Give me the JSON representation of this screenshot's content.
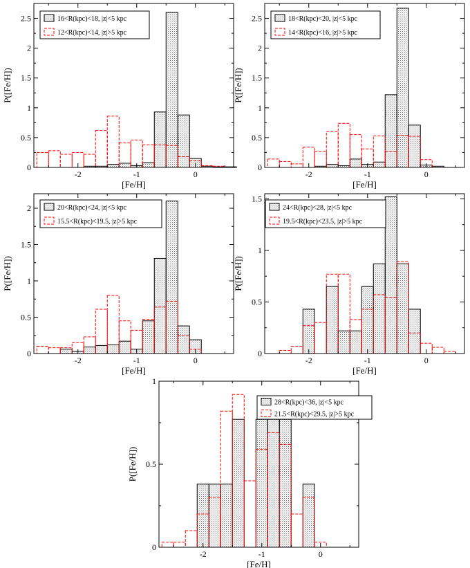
{
  "figure": {
    "colors": {
      "series1": "#000000",
      "series2": "#ff0000",
      "hatch": "#777777"
    }
  },
  "chart_data": [
    {
      "type": "bar",
      "title": "",
      "xlabel": "[Fe/H]",
      "ylabel": "P([Fe/H])",
      "xlim": [
        -2.75,
        0.65
      ],
      "ylim": [
        0,
        2.75
      ],
      "bin_width": 0.2,
      "xticks": [
        -2,
        -1,
        0
      ],
      "xtick_labels": [
        "-2",
        "-1",
        "0"
      ],
      "yticks": [
        0,
        0.5,
        1,
        1.5,
        2,
        2.5
      ],
      "ytick_labels": [
        "0",
        "0.5",
        "1",
        "1.5",
        "2",
        "2.5"
      ],
      "legend": [
        "16<R(kpc)<18, |z|<5 kpc",
        "12<R(kpc)<14, |z|>5 kpc"
      ],
      "legend_position": "top-left",
      "series": [
        {
          "name": "16<R(kpc)<18, |z|<5 kpc",
          "bin_left": [
            -1.9,
            -1.7,
            -1.5,
            -1.3,
            -1.1,
            -0.9,
            -0.7,
            -0.5,
            -0.3,
            -0.1,
            0.1,
            0.3,
            0.5
          ],
          "values": [
            0.02,
            0.02,
            0.05,
            0.07,
            0.03,
            0.08,
            0.93,
            2.6,
            0.88,
            0.15,
            0.02,
            0.01,
            0.01
          ]
        },
        {
          "name": "12<R(kpc)<14, |z|>5 kpc",
          "bin_left": [
            -2.7,
            -2.5,
            -2.3,
            -2.1,
            -1.9,
            -1.7,
            -1.5,
            -1.3,
            -1.1,
            -0.9,
            -0.7,
            -0.5,
            -0.3,
            -0.1,
            0.1,
            0.3
          ],
          "values": [
            0.25,
            0.28,
            0.22,
            0.25,
            0.22,
            0.62,
            0.86,
            0.41,
            0.46,
            0.38,
            0.38,
            0.37,
            0.18,
            0.11,
            0.03,
            0.02
          ]
        }
      ]
    },
    {
      "type": "bar",
      "title": "",
      "xlabel": "[Fe/H]",
      "ylabel": "P([Fe/H])",
      "xlim": [
        -2.75,
        0.65
      ],
      "ylim": [
        0,
        2.75
      ],
      "bin_width": 0.2,
      "xticks": [
        -2,
        -1,
        0
      ],
      "xtick_labels": [
        "-2",
        "-1",
        "0"
      ],
      "yticks": [
        0,
        0.5,
        1,
        1.5,
        2,
        2.5
      ],
      "ytick_labels": [
        "0",
        "0.5",
        "1",
        "1.5",
        "2",
        "2.5"
      ],
      "legend": [
        "18<R(kpc)<20, |z|<5 kpc",
        "14<R(kpc)<16, |z|>5 kpc"
      ],
      "legend_position": "top-left",
      "series": [
        {
          "name": "18<R(kpc)<20, |z|<5 kpc",
          "bin_left": [
            -1.9,
            -1.7,
            -1.5,
            -1.3,
            -1.1,
            -0.9,
            -0.7,
            -0.5,
            -0.3,
            -0.1,
            0.1
          ],
          "values": [
            0.02,
            0.05,
            0.03,
            0.14,
            0.05,
            0.09,
            1.22,
            2.67,
            0.71,
            0.04,
            0.02
          ]
        },
        {
          "name": "14<R(kpc)<16, |z|>5 kpc",
          "bin_left": [
            -2.7,
            -2.5,
            -2.3,
            -2.1,
            -1.9,
            -1.7,
            -1.5,
            -1.3,
            -1.1,
            -0.9,
            -0.7,
            -0.5,
            -0.3,
            -0.1
          ],
          "values": [
            0.14,
            0.1,
            0.06,
            0.34,
            0.27,
            0.6,
            0.74,
            0.55,
            0.31,
            0.53,
            0.27,
            0.54,
            0.52,
            0.13
          ]
        }
      ]
    },
    {
      "type": "bar",
      "title": "",
      "xlabel": "[Fe/H]",
      "ylabel": "P([Fe/H])",
      "xlim": [
        -2.75,
        0.65
      ],
      "ylim": [
        0,
        2.2
      ],
      "bin_width": 0.2,
      "xticks": [
        -2,
        -1,
        0
      ],
      "xtick_labels": [
        "-2",
        "-1",
        "0"
      ],
      "yticks": [
        0,
        0.5,
        1,
        1.5,
        2
      ],
      "ytick_labels": [
        "0",
        "0.5",
        "1",
        "1.5",
        "2"
      ],
      "legend": [
        "20<R(kpc)<24, |z|<5 kpc",
        "15.5<R(kpc)<19.5, |z|>5 kpc"
      ],
      "legend_position": "top-left",
      "series": [
        {
          "name": "20<R(kpc)<24, |z|<5 kpc",
          "bin_left": [
            -2.3,
            -2.1,
            -1.9,
            -1.7,
            -1.5,
            -1.3,
            -1.1,
            -0.9,
            -0.7,
            -0.5,
            -0.3,
            -0.1
          ],
          "values": [
            0.06,
            0.03,
            0.09,
            0.11,
            0.12,
            0.17,
            0.06,
            0.45,
            1.31,
            2.1,
            0.38,
            0.19
          ]
        },
        {
          "name": "15.5<R(kpc)<19.5, |z|>5 kpc",
          "bin_left": [
            -2.7,
            -2.5,
            -2.3,
            -2.1,
            -1.9,
            -1.7,
            -1.5,
            -1.3,
            -1.1,
            -0.9,
            -0.7,
            -0.5,
            -0.3,
            -0.1
          ],
          "values": [
            0.1,
            0.08,
            0.08,
            0.15,
            0.23,
            0.61,
            0.8,
            0.45,
            0.32,
            0.47,
            0.64,
            0.72,
            0.25,
            0.06
          ]
        }
      ]
    },
    {
      "type": "bar",
      "title": "",
      "xlabel": "[Fe/H]",
      "ylabel": "P([Fe/H])",
      "xlim": [
        -2.75,
        0.65
      ],
      "ylim": [
        0,
        1.55
      ],
      "bin_width": 0.2,
      "xticks": [
        -2,
        -1,
        0
      ],
      "xtick_labels": [
        "-2",
        "-1",
        "0"
      ],
      "yticks": [
        0,
        0.5,
        1,
        1.5
      ],
      "ytick_labels": [
        "0",
        "0.5",
        "1",
        "1.5"
      ],
      "legend": [
        "24<R(kpc)<28, |z|<5 kpc",
        "19.5<R(kpc)<23.5, |z|>5 kpc"
      ],
      "legend_position": "top-left",
      "series": [
        {
          "name": "24<R(kpc)<28, |z|<5 kpc",
          "bin_left": [
            -2.1,
            -1.9,
            -1.7,
            -1.5,
            -1.3,
            -1.1,
            -0.9,
            -0.7,
            -0.5,
            -0.3
          ],
          "values": [
            0.43,
            0.0,
            0.65,
            0.22,
            0.22,
            0.65,
            0.87,
            1.52,
            0.87,
            0.43
          ]
        },
        {
          "name": "19.5<R(kpc)<23.5, |z|>5 kpc",
          "bin_left": [
            -2.5,
            -2.3,
            -2.1,
            -1.9,
            -1.7,
            -1.5,
            -1.3,
            -1.1,
            -0.9,
            -0.7,
            -0.5,
            -0.3,
            -0.1,
            0.1,
            0.3
          ],
          "values": [
            0.03,
            0.07,
            0.27,
            0.3,
            0.77,
            0.77,
            0.33,
            0.43,
            0.57,
            0.54,
            0.89,
            0.2,
            0.1,
            0.06,
            0.02
          ]
        }
      ]
    },
    {
      "type": "bar",
      "title": "",
      "xlabel": "[Fe/H]",
      "ylabel": "P([Fe/H])",
      "xlim": [
        -2.75,
        0.65
      ],
      "ylim": [
        0,
        1.0
      ],
      "bin_width": 0.2,
      "xticks": [
        -2,
        -1,
        0
      ],
      "xtick_labels": [
        "-2",
        "-1",
        "0"
      ],
      "yticks": [
        0,
        0.5,
        1
      ],
      "ytick_labels": [
        "0",
        "0.5",
        "1"
      ],
      "legend": [
        "28<R(kpc)<36, |z|<5 kpc",
        "21.5<R(kpc)<29.5, |z|>5 kpc"
      ],
      "legend_position": "top-right",
      "series": [
        {
          "name": "28<R(kpc)<36, |z|<5 kpc",
          "bin_left": [
            -2.1,
            -1.9,
            -1.7,
            -1.5,
            -1.3,
            -1.1,
            -0.9,
            -0.7,
            -0.5,
            -0.3,
            -0.1
          ],
          "values": [
            0.38,
            0.38,
            0.38,
            0.77,
            0.0,
            0.77,
            0.77,
            0.77,
            0.0,
            0.38,
            0.0
          ]
        },
        {
          "name": "21.5<R(kpc)<29.5, |z|>5 kpc",
          "bin_left": [
            -2.7,
            -2.5,
            -2.3,
            -2.1,
            -1.9,
            -1.7,
            -1.5,
            -1.3,
            -1.1,
            -0.9,
            -0.7,
            -0.5,
            -0.3,
            -0.1
          ],
          "values": [
            0.03,
            0.03,
            0.1,
            0.2,
            0.3,
            0.82,
            0.92,
            0.4,
            0.59,
            0.69,
            0.62,
            0.2,
            0.3,
            0.03
          ]
        }
      ]
    }
  ]
}
